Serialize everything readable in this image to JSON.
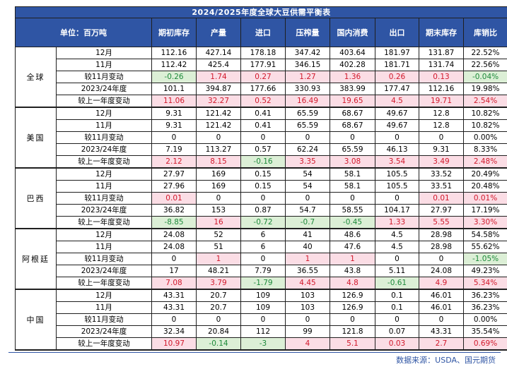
{
  "table": {
    "title": "2024/2025年度全球大豆供需平衡表",
    "header_unit": "单位：百万吨",
    "columns": [
      "期初库存",
      "产量",
      "进口",
      "压榨量",
      "国内消费",
      "出口",
      "期末库存",
      "库销比"
    ],
    "regions": [
      {
        "name": "全球",
        "rows": [
          {
            "label": "12月",
            "values": [
              "112.16",
              "427.14",
              "178.18",
              "347.42",
              "403.64",
              "181.97",
              "131.87",
              "22.52%"
            ]
          },
          {
            "label": "11月",
            "values": [
              "112.42",
              "425.4",
              "177.91",
              "346.15",
              "402.28",
              "181.71",
              "131.74",
              "22.56%"
            ]
          },
          {
            "label": "较11月变动",
            "values": [
              "-0.26",
              "1.74",
              "0.27",
              "1.27",
              "1.36",
              "0.26",
              "0.13",
              "-0.04%"
            ]
          },
          {
            "label": "2023/24年度",
            "values": [
              "101.1",
              "394.87",
              "177.66",
              "330.93",
              "383.99",
              "177.47",
              "112.16",
              "19.98%"
            ]
          },
          {
            "label": "较上一年度变动",
            "values": [
              "11.06",
              "32.27",
              "0.52",
              "16.49",
              "19.65",
              "4.5",
              "19.71",
              "2.54%"
            ]
          }
        ]
      },
      {
        "name": "美国",
        "rows": [
          {
            "label": "12月",
            "values": [
              "9.31",
              "121.42",
              "0.41",
              "65.59",
              "68.67",
              "49.67",
              "12.8",
              "10.82%"
            ]
          },
          {
            "label": "11月",
            "values": [
              "9.31",
              "121.42",
              "0.41",
              "65.59",
              "68.67",
              "49.67",
              "12.8",
              "10.82%"
            ]
          },
          {
            "label": "较11月变动",
            "values": [
              "0",
              "0",
              "0",
              "0",
              "0",
              "0",
              "0",
              "0.00%"
            ]
          },
          {
            "label": "2023/24年度",
            "values": [
              "7.19",
              "113.27",
              "0.57",
              "62.24",
              "65.59",
              "46.13",
              "9.31",
              "8.33%"
            ]
          },
          {
            "label": "较上一年度变动",
            "values": [
              "2.12",
              "8.15",
              "-0.16",
              "3.35",
              "3.08",
              "3.54",
              "3.49",
              "2.48%"
            ]
          }
        ]
      },
      {
        "name": "巴西",
        "rows": [
          {
            "label": "12月",
            "values": [
              "27.97",
              "169",
              "0.15",
              "54",
              "58.1",
              "105.5",
              "33.52",
              "20.49%"
            ]
          },
          {
            "label": "11月",
            "values": [
              "27.96",
              "169",
              "0.15",
              "54",
              "58.1",
              "105.5",
              "33.51",
              "20.48%"
            ]
          },
          {
            "label": "较11月变动",
            "values": [
              "0.01",
              "0",
              "0",
              "0",
              "0",
              "0",
              "0.01",
              "0.01%"
            ]
          },
          {
            "label": "2023/24年度",
            "values": [
              "36.82",
              "153",
              "0.87",
              "54.7",
              "58.55",
              "104.17",
              "27.97",
              "17.19%"
            ]
          },
          {
            "label": "较上一年度变动",
            "values": [
              "-8.85",
              "16",
              "-0.72",
              "-0.7",
              "-0.45",
              "1.33",
              "5.55",
              "3.30%"
            ]
          }
        ]
      },
      {
        "name": "阿根廷",
        "rows": [
          {
            "label": "12月",
            "values": [
              "24.08",
              "52",
              "6",
              "41",
              "48.6",
              "4.5",
              "28.98",
              "54.58%"
            ]
          },
          {
            "label": "11月",
            "values": [
              "24.08",
              "51",
              "6",
              "40",
              "47.6",
              "4.5",
              "28.98",
              "55.62%"
            ]
          },
          {
            "label": "较11月变动",
            "values": [
              "0",
              "1",
              "0",
              "1",
              "1",
              "0",
              "0",
              "-1.05%"
            ]
          },
          {
            "label": "2023/24年度",
            "values": [
              "17",
              "48.21",
              "7.79",
              "36.55",
              "43.8",
              "5.11",
              "24.08",
              "49.23%"
            ]
          },
          {
            "label": "较上一年度变动",
            "values": [
              "7.08",
              "3.79",
              "-1.79",
              "4.45",
              "4.8",
              "-0.61",
              "4.9",
              "5.34%"
            ]
          }
        ]
      },
      {
        "name": "中国",
        "rows": [
          {
            "label": "12月",
            "values": [
              "43.31",
              "20.7",
              "109",
              "103",
              "126.9",
              "0.1",
              "46.01",
              "36.23%"
            ]
          },
          {
            "label": "11月",
            "values": [
              "43.31",
              "20.7",
              "109",
              "103",
              "126.9",
              "0.1",
              "46.01",
              "36.23%"
            ]
          },
          {
            "label": "较11月变动",
            "values": [
              "0",
              "0",
              "0",
              "0",
              "0",
              "0",
              "0",
              "0.00%"
            ]
          },
          {
            "label": "2023/24年度",
            "values": [
              "32.34",
              "20.84",
              "112",
              "99",
              "121.8",
              "0.07",
              "43.31",
              "35.54%"
            ]
          },
          {
            "label": "较上一年度变动",
            "values": [
              "10.97",
              "-0.14",
              "-3",
              "4",
              "5.1",
              "0.03",
              "2.7",
              "0.69%"
            ]
          }
        ]
      }
    ]
  },
  "colors": {
    "header_bg": "#2f55a4",
    "positive_bg": "#fbdde5",
    "positive_text": "#d1182b",
    "negative_bg": "#dcefd6",
    "negative_text": "#1d8a3a"
  },
  "footer": {
    "source": "数据来源：USDA、国元期货"
  }
}
